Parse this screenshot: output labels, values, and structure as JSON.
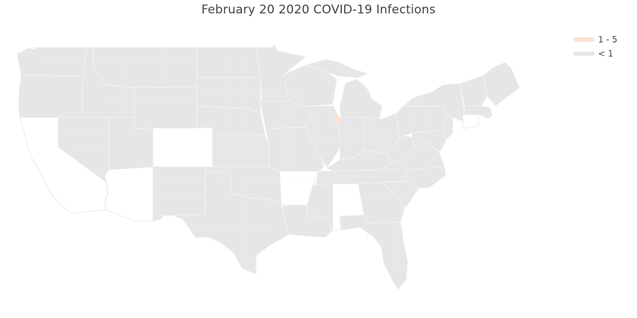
{
  "title": "February 20 2020 COVID-19 Infections",
  "colors": {
    "no_data": "#ffffff",
    "under_1": "#e6e6e6",
    "range_1_5": "#fde0d2",
    "state_border": "#f4f4f4",
    "outline": "#e4e4e4"
  },
  "legend": [
    {
      "label": "1 - 5",
      "color": "#fde0d2"
    },
    {
      "label": "< 1",
      "color": "#e6e6e6"
    }
  ],
  "map_data": {
    "type": "choropleth",
    "scope": "USA-counties",
    "categories": [
      "1 - 5",
      "< 1"
    ],
    "highlighted_area": {
      "region": "Cook County, Illinois",
      "category": "1 - 5"
    },
    "states_without_county_data": [
      "California",
      "Arizona",
      "Colorado",
      "Arkansas",
      "Alabama",
      "Connecticut"
    ]
  }
}
